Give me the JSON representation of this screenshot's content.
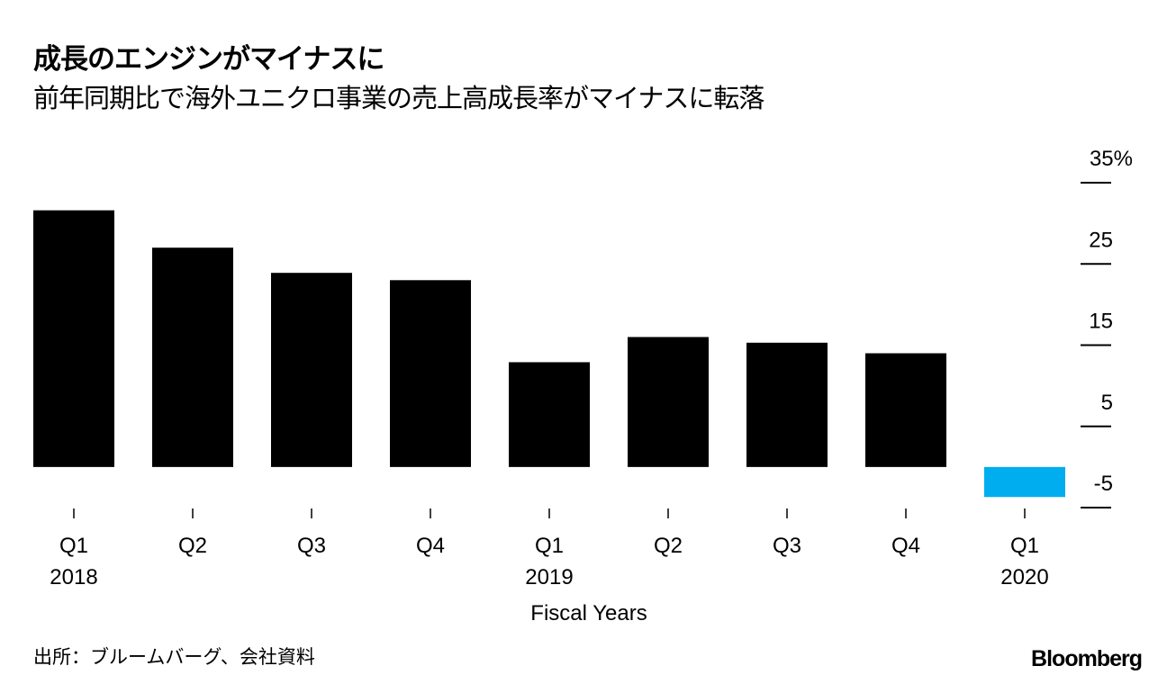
{
  "chart_data": {
    "type": "bar",
    "title": "成長のエンジンがマイナスに",
    "subtitle": "前年同期比で海外ユニクロ事業の売上高成長率がマイナスに転落",
    "xlabel": "Fiscal Years",
    "ylabel": "",
    "categories": [
      "Q1",
      "Q2",
      "Q3",
      "Q4",
      "Q1",
      "Q2",
      "Q3",
      "Q4",
      "Q1"
    ],
    "year_labels": [
      "2018",
      "",
      "",
      "",
      "2019",
      "",
      "",
      "",
      "2020"
    ],
    "values": [
      31.6,
      27.0,
      23.9,
      23.0,
      12.9,
      16.0,
      15.3,
      14.0,
      -3.7
    ],
    "colors": [
      "#000000",
      "#000000",
      "#000000",
      "#000000",
      "#000000",
      "#000000",
      "#000000",
      "#000000",
      "#00adef"
    ],
    "ylim": [
      -5,
      35
    ],
    "yticks": [
      35,
      25,
      15,
      5,
      -5
    ],
    "ytick_labels": [
      "35%",
      "25",
      "15",
      "5",
      "-5"
    ],
    "y_axis_side": "right",
    "grid": false,
    "source": "出所：ブルームバーグ、会社資料",
    "logo": "Bloomberg"
  }
}
